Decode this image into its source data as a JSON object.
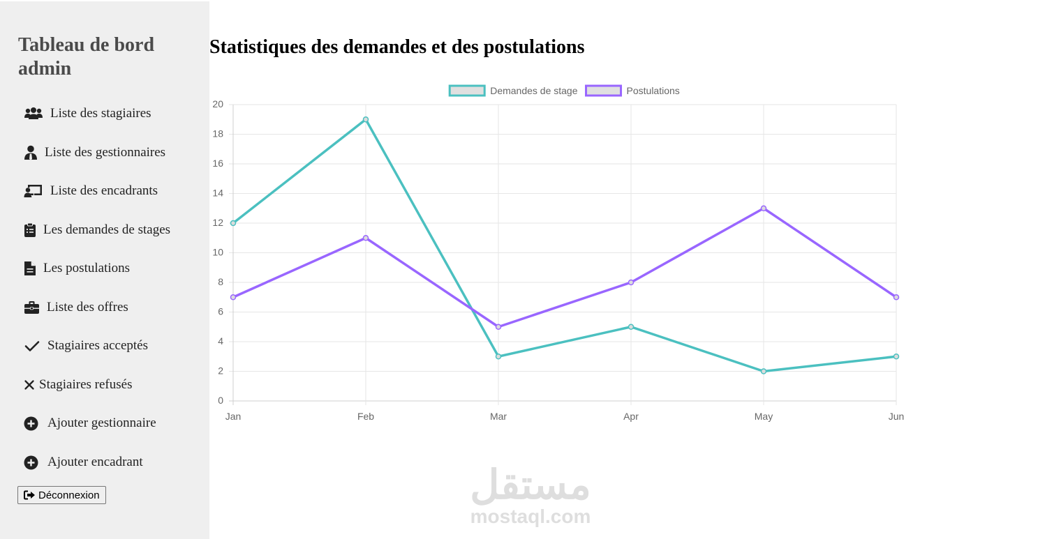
{
  "sidebar": {
    "title": "Tableau de bord admin",
    "items": [
      {
        "label": "Liste des stagiaires",
        "icon": "users-icon"
      },
      {
        "label": "Liste des gestionnaires",
        "icon": "user-tie-icon"
      },
      {
        "label": "Liste des encadrants",
        "icon": "chalkboard-teacher-icon"
      },
      {
        "label": "Les demandes de stages",
        "icon": "clipboard-icon"
      },
      {
        "label": "Les postulations",
        "icon": "file-icon"
      },
      {
        "label": "Liste des offres",
        "icon": "briefcase-icon"
      },
      {
        "label": "Stagiaires acceptés",
        "icon": "check-icon"
      },
      {
        "label": "Stagiaires refusés",
        "icon": "times-icon"
      },
      {
        "label": "Ajouter gestionnaire",
        "icon": "plus-circle-icon"
      },
      {
        "label": "Ajouter encadrant",
        "icon": "plus-circle-icon"
      }
    ],
    "logout_label": "Déconnexion",
    "logout_icon": "sign-out-icon"
  },
  "main": {
    "title": "Statistiques des demandes et des postulations"
  },
  "watermark": {
    "arabic": "مستقل",
    "latin": "mostaql.com"
  },
  "chart_data": {
    "type": "line",
    "title": "",
    "xlabel": "",
    "ylabel": "",
    "categories": [
      "Jan",
      "Feb",
      "Mar",
      "Apr",
      "May",
      "Jun"
    ],
    "ylim": [
      0,
      20
    ],
    "yticks": [
      0,
      2,
      4,
      6,
      8,
      10,
      12,
      14,
      16,
      18,
      20
    ],
    "grid": true,
    "legend": "top",
    "series": [
      {
        "name": "Demandes de stage",
        "values": [
          12,
          19,
          3,
          5,
          2,
          3
        ],
        "color": "#4bc0c0"
      },
      {
        "name": "Postulations",
        "values": [
          7,
          11,
          5,
          8,
          13,
          7
        ],
        "color": "#9966ff"
      }
    ]
  }
}
